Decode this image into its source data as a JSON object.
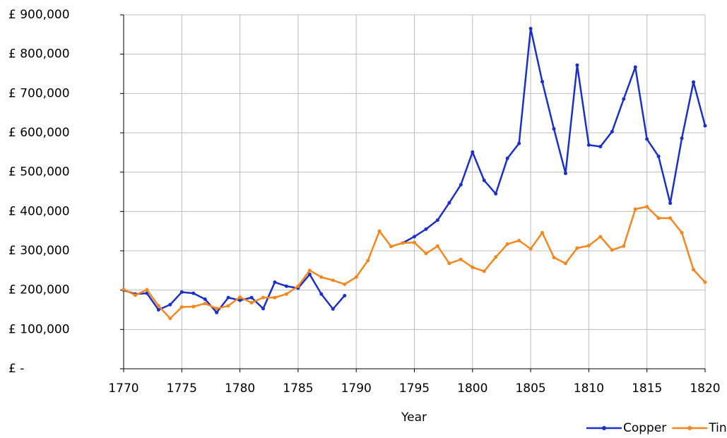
{
  "chart_data": {
    "type": "line",
    "x_label": "Year",
    "x": [
      1770,
      1771,
      1772,
      1773,
      1774,
      1775,
      1776,
      1777,
      1778,
      1779,
      1780,
      1781,
      1782,
      1783,
      1784,
      1785,
      1786,
      1787,
      1788,
      1789,
      1790,
      1791,
      1792,
      1793,
      1794,
      1795,
      1796,
      1797,
      1798,
      1799,
      1800,
      1801,
      1802,
      1803,
      1804,
      1805,
      1806,
      1807,
      1808,
      1809,
      1810,
      1811,
      1812,
      1813,
      1814,
      1815,
      1816,
      1817,
      1818,
      1819,
      1820
    ],
    "series": [
      {
        "name": "Copper",
        "color": "#1b30c8",
        "values": [
          200000,
          190000,
          192000,
          150000,
          163000,
          195000,
          192000,
          177000,
          143000,
          181000,
          174000,
          181000,
          153000,
          220000,
          210000,
          205000,
          240000,
          190000,
          152000,
          186000,
          null,
          null,
          null,
          null,
          320000,
          336000,
          355000,
          378000,
          422000,
          468000,
          551000,
          479000,
          445000,
          535000,
          573000,
          865000,
          730000,
          610000,
          497000,
          772000,
          569000,
          565000,
          603000,
          686000,
          767000,
          584000,
          540000,
          421000,
          586000,
          729000,
          618000
        ]
      },
      {
        "name": "Tin",
        "color": "#f7861d",
        "values": [
          202000,
          187000,
          201000,
          160000,
          128000,
          157000,
          158000,
          166000,
          153000,
          160000,
          182000,
          168000,
          181000,
          181000,
          190000,
          210000,
          250000,
          233000,
          225000,
          215000,
          233000,
          275000,
          350000,
          311000,
          320000,
          321000,
          293000,
          312000,
          268000,
          278000,
          258000,
          248000,
          284000,
          317000,
          326000,
          305000,
          346000,
          283000,
          268000,
          307000,
          313000,
          336000,
          302000,
          312000,
          406000,
          412000,
          383000,
          383000,
          346000,
          252000,
          220000
        ]
      }
    ],
    "xlim": [
      1770,
      1820
    ],
    "xticks": [
      1770,
      1775,
      1780,
      1785,
      1790,
      1795,
      1800,
      1805,
      1810,
      1815,
      1820
    ],
    "ylim": [
      0,
      900000
    ],
    "yticks": [
      {
        "value": 0,
        "label": "£ -"
      },
      {
        "value": 100000,
        "label": "£ 100,000"
      },
      {
        "value": 200000,
        "label": "£ 200,000"
      },
      {
        "value": 300000,
        "label": "£ 300,000"
      },
      {
        "value": 400000,
        "label": "£ 400,000"
      },
      {
        "value": 500000,
        "label": "£ 500,000"
      },
      {
        "value": 600000,
        "label": "£ 600,000"
      },
      {
        "value": 700000,
        "label": "£ 700,000"
      },
      {
        "value": 800000,
        "label": "£ 800,000"
      },
      {
        "value": 900000,
        "label": "£ 900,000"
      }
    ],
    "grid": true,
    "legend": "bottom-right"
  }
}
